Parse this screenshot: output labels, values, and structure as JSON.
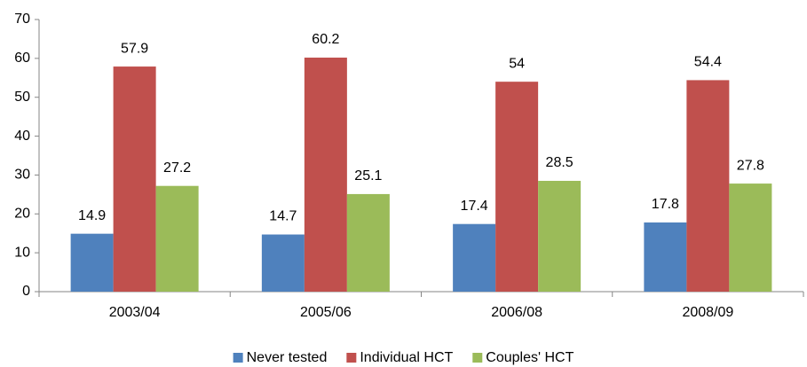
{
  "chart_data": {
    "type": "bar",
    "categories": [
      "2003/04",
      "2005/06",
      "2006/08",
      "2008/09"
    ],
    "series": [
      {
        "name": "Never tested",
        "color": "#4f81bd",
        "values": [
          14.9,
          14.7,
          17.4,
          17.8
        ]
      },
      {
        "name": "Individual HCT",
        "color": "#c0504d",
        "values": [
          57.9,
          60.2,
          54,
          54.4
        ]
      },
      {
        "name": "Couples' HCT",
        "color": "#9bbb59",
        "values": [
          27.2,
          25.1,
          28.5,
          27.8
        ]
      }
    ],
    "ylim": [
      0,
      70
    ],
    "yticks": [
      0,
      10,
      20,
      30,
      40,
      50,
      60,
      70
    ],
    "grid": false,
    "legend": "bottom"
  }
}
